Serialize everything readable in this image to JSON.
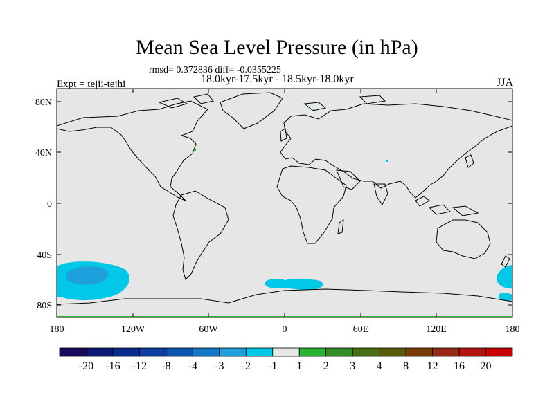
{
  "title": "Mean Sea Level Pressure (in hPa)",
  "stats": "rmsd= 0.372836 diff= -0.0355225",
  "period": "18.0kyr-17.5kyr - 18.5kyr-18.0kyr",
  "experiment": "Expt = tejii-tejhi",
  "season": "JJA",
  "lat_labels": [
    "80N",
    "40N",
    "0",
    "40S",
    "80S"
  ],
  "lon_labels": [
    "180",
    "120W",
    "60W",
    "0",
    "60E",
    "120E",
    "180"
  ],
  "colorbar": {
    "labels": [
      "-20",
      "-16",
      "-12",
      "-8",
      "-4",
      "-3",
      "-2",
      "-1",
      "1",
      "2",
      "3",
      "4",
      "8",
      "12",
      "16",
      "20"
    ],
    "colors": [
      "#1a0a5e",
      "#0d1a7a",
      "#0a2a8c",
      "#0a3da0",
      "#0a55b0",
      "#1478c8",
      "#1ea0dc",
      "#00c8e6",
      "#e6e6e6",
      "#28b432",
      "#328c28",
      "#466e14",
      "#5a5a0a",
      "#783c0a",
      "#962814",
      "#b4140f",
      "#c80000"
    ]
  },
  "map_data": {
    "field": "Mean sea level pressure difference (hPa)",
    "projection": "cylindrical equidistant",
    "background_color": "#e6e6e6",
    "anomalies": [
      {
        "region": "South Pacific ~50S 160W-125W",
        "band": "-2 to -1",
        "color": "#00c8e6"
      },
      {
        "region": "South Pacific core ~55S 160W",
        "band": "-3 to -2",
        "color": "#1ea0dc"
      },
      {
        "region": "South Atlantic ~65S 20W-35E",
        "band": "-2 to -1",
        "color": "#00c8e6"
      },
      {
        "region": "SW Pacific ~55S 170E-180",
        "band": "-2 to -1",
        "color": "#00c8e6"
      }
    ]
  }
}
